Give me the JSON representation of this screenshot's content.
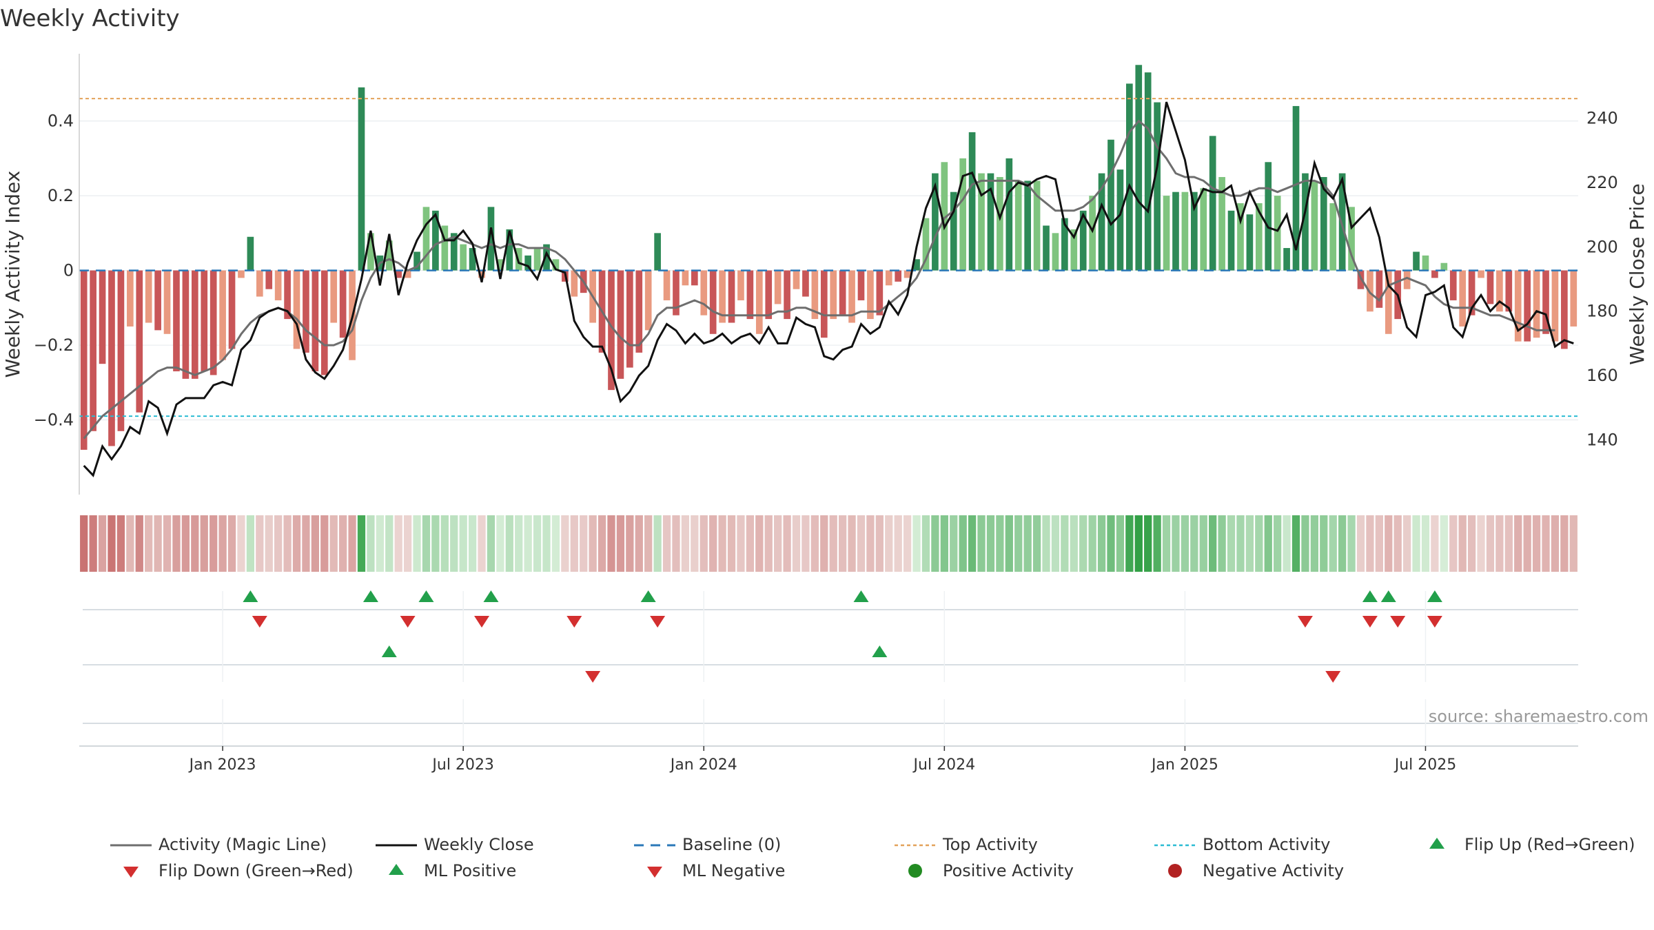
{
  "chart_data": {
    "type": "bar",
    "title": "Weekly Activity",
    "ylabel": "Weekly Activity Index",
    "y2label": "Weekly Close Price",
    "source": "source: sharemaestro.com",
    "ylim": [
      -0.6,
      0.58
    ],
    "y2lim": [
      123,
      260
    ],
    "yticks": [
      -0.4,
      -0.2,
      0,
      0.2,
      0.4
    ],
    "yticklabels": [
      "−0.4",
      "−0.2",
      "0",
      "0.2",
      "0.4"
    ],
    "y2ticks": [
      140,
      160,
      180,
      200,
      220,
      240
    ],
    "y2ticklabels": [
      "140",
      "160",
      "180",
      "200",
      "220",
      "240"
    ],
    "top_activity": 0.46,
    "bottom_activity": -0.39,
    "x_range_weeks": [
      0,
      157
    ],
    "xticks": [
      {
        "week": 15,
        "label": "Jan 2023"
      },
      {
        "week": 41,
        "label": "Jul 2023"
      },
      {
        "week": 67,
        "label": "Jan 2024"
      },
      {
        "week": 93,
        "label": "Jul 2024"
      },
      {
        "week": 119,
        "label": "Jan 2025"
      },
      {
        "week": 145,
        "label": "Jul 2025"
      }
    ],
    "series": [
      {
        "name": "Weekly Activity Index",
        "values": [
          -0.48,
          -0.43,
          -0.25,
          -0.47,
          -0.43,
          -0.15,
          -0.38,
          -0.14,
          -0.16,
          -0.17,
          -0.27,
          -0.29,
          -0.29,
          -0.27,
          -0.28,
          -0.24,
          -0.21,
          -0.02,
          0.09,
          -0.07,
          -0.05,
          -0.08,
          -0.13,
          -0.21,
          -0.22,
          -0.27,
          -0.28,
          -0.14,
          -0.18,
          -0.24,
          0.49,
          0.1,
          0.04,
          0.08,
          -0.02,
          -0.02,
          0.05,
          0.17,
          0.16,
          0.12,
          0.1,
          0.07,
          0.06,
          -0.02,
          0.17,
          0.03,
          0.11,
          0.06,
          0.04,
          0.06,
          0.07,
          0.03,
          -0.03,
          -0.07,
          -0.06,
          -0.14,
          -0.22,
          -0.32,
          -0.29,
          -0.26,
          -0.22,
          -0.16,
          0.1,
          -0.08,
          -0.12,
          -0.04,
          -0.04,
          -0.12,
          -0.17,
          -0.14,
          -0.14,
          -0.08,
          -0.13,
          -0.17,
          -0.13,
          -0.09,
          -0.13,
          -0.05,
          -0.07,
          -0.13,
          -0.18,
          -0.13,
          -0.12,
          -0.14,
          -0.08,
          -0.13,
          -0.12,
          -0.04,
          -0.03,
          -0.02,
          0.03,
          0.14,
          0.26,
          0.29,
          0.21,
          0.3,
          0.37,
          0.26,
          0.26,
          0.25,
          0.3,
          0.24,
          0.24,
          0.24,
          0.12,
          0.1,
          0.14,
          0.11,
          0.16,
          0.2,
          0.26,
          0.35,
          0.27,
          0.5,
          0.55,
          0.53,
          0.45,
          0.2,
          0.21,
          0.21,
          0.21,
          0.22,
          0.36,
          0.25,
          0.16,
          0.18,
          0.15,
          0.18,
          0.29,
          0.2,
          0.06,
          0.44,
          0.26,
          0.24,
          0.25,
          0.18,
          0.26,
          0.17,
          -0.05,
          -0.11,
          -0.1,
          -0.17,
          -0.13,
          -0.05,
          0.05,
          0.04,
          -0.02,
          0.02,
          -0.08,
          -0.15,
          -0.12,
          -0.02,
          -0.09,
          -0.11,
          -0.11,
          -0.19,
          -0.19,
          -0.18,
          -0.17,
          -0.19,
          -0.21,
          -0.15
        ]
      },
      {
        "name": "Weekly Close",
        "values": [
          132,
          129,
          138,
          134,
          138,
          144,
          142,
          152,
          150,
          142,
          151,
          153,
          153,
          153,
          157,
          158,
          157,
          168,
          171,
          178,
          180,
          181,
          180,
          176,
          165,
          161,
          159,
          163,
          168,
          178,
          190,
          205,
          188,
          204,
          185,
          195,
          202,
          207,
          210,
          202,
          202,
          205,
          201,
          189,
          206,
          190,
          205,
          195,
          194,
          190,
          198,
          193,
          192,
          177,
          172,
          169,
          169,
          162,
          152,
          155,
          160,
          163,
          171,
          176,
          174,
          170,
          173,
          170,
          171,
          173,
          170,
          172,
          173,
          170,
          175,
          170,
          170,
          178,
          176,
          175,
          166,
          165,
          168,
          169,
          176,
          173,
          175,
          183,
          179,
          185,
          200,
          212,
          219,
          206,
          211,
          222,
          223,
          216,
          218,
          209,
          217,
          220,
          219,
          221,
          222,
          221,
          207,
          203,
          210,
          205,
          213,
          207,
          210,
          219,
          214,
          211,
          225,
          245,
          236,
          227,
          212,
          218,
          217,
          217,
          219,
          208,
          217,
          211,
          206,
          205,
          210,
          199,
          211,
          226,
          218,
          215,
          221,
          206,
          209,
          212,
          203,
          188,
          185,
          175,
          172,
          185,
          186,
          188,
          175,
          172,
          181,
          185,
          180,
          183,
          181,
          174,
          176,
          180,
          179,
          169,
          171,
          170
        ]
      },
      {
        "name": "Activity (Magic Line)",
        "values": [
          -0.45,
          -0.42,
          -0.39,
          -0.37,
          -0.35,
          -0.33,
          -0.31,
          -0.29,
          -0.27,
          -0.26,
          -0.26,
          -0.27,
          -0.28,
          -0.27,
          -0.26,
          -0.24,
          -0.21,
          -0.17,
          -0.14,
          -0.12,
          -0.11,
          -0.1,
          -0.11,
          -0.13,
          -0.16,
          -0.18,
          -0.2,
          -0.2,
          -0.19,
          -0.16,
          -0.08,
          -0.02,
          0.02,
          0.03,
          0.02,
          0.0,
          0.01,
          0.04,
          0.07,
          0.08,
          0.09,
          0.08,
          0.07,
          0.06,
          0.07,
          0.06,
          0.07,
          0.07,
          0.06,
          0.06,
          0.06,
          0.05,
          0.03,
          0.0,
          -0.03,
          -0.07,
          -0.11,
          -0.15,
          -0.18,
          -0.2,
          -0.2,
          -0.17,
          -0.12,
          -0.1,
          -0.1,
          -0.09,
          -0.08,
          -0.09,
          -0.11,
          -0.12,
          -0.12,
          -0.12,
          -0.12,
          -0.12,
          -0.12,
          -0.11,
          -0.11,
          -0.1,
          -0.1,
          -0.11,
          -0.12,
          -0.12,
          -0.12,
          -0.12,
          -0.11,
          -0.11,
          -0.11,
          -0.09,
          -0.07,
          -0.05,
          -0.02,
          0.03,
          0.09,
          0.14,
          0.16,
          0.19,
          0.23,
          0.24,
          0.24,
          0.24,
          0.24,
          0.24,
          0.23,
          0.2,
          0.18,
          0.16,
          0.16,
          0.16,
          0.17,
          0.19,
          0.22,
          0.26,
          0.31,
          0.37,
          0.4,
          0.38,
          0.33,
          0.3,
          0.26,
          0.25,
          0.25,
          0.24,
          0.22,
          0.21,
          0.2,
          0.2,
          0.21,
          0.22,
          0.22,
          0.21,
          0.22,
          0.23,
          0.24,
          0.24,
          0.23,
          0.2,
          0.12,
          0.04,
          -0.02,
          -0.06,
          -0.08,
          -0.04,
          -0.03,
          -0.02,
          -0.03,
          -0.04,
          -0.07,
          -0.09,
          -0.1,
          -0.1,
          -0.1,
          -0.11,
          -0.12,
          -0.12,
          -0.13,
          -0.14,
          -0.15,
          -0.16,
          -0.16,
          -0.16
        ]
      }
    ],
    "flip_up_weeks": [
      18,
      31,
      37,
      44,
      61,
      84,
      139,
      141,
      146
    ],
    "flip_down_weeks": [
      19,
      35,
      43,
      53,
      62,
      132,
      139,
      142,
      146
    ],
    "ml_positive_weeks": [
      33,
      86
    ],
    "ml_negative_weeks": [
      55,
      135
    ],
    "legend": [
      "Activity (Magic Line)",
      "Weekly Close",
      "Baseline (0)",
      "Top Activity",
      "Bottom Activity",
      "Flip Up (Red→Green)",
      "Flip Down (Green→Red)",
      "ML Positive",
      "ML Negative",
      "Positive Activity",
      "Negative Activity"
    ]
  },
  "colors": {
    "pos_dark": "#2e8a57",
    "pos_light": "#7fc47f",
    "neg_dark": "#c85658",
    "neg_light": "#e99a80",
    "close": "#111111",
    "magic": "#6e6e6e",
    "baseline": "#2a78b8",
    "top": "#e3a25a",
    "bottom": "#2bbcd3",
    "flip_up": "#22a04b",
    "flip_down": "#d32f2f",
    "positive_dot": "#228b22",
    "negative_dot": "#b22222"
  }
}
